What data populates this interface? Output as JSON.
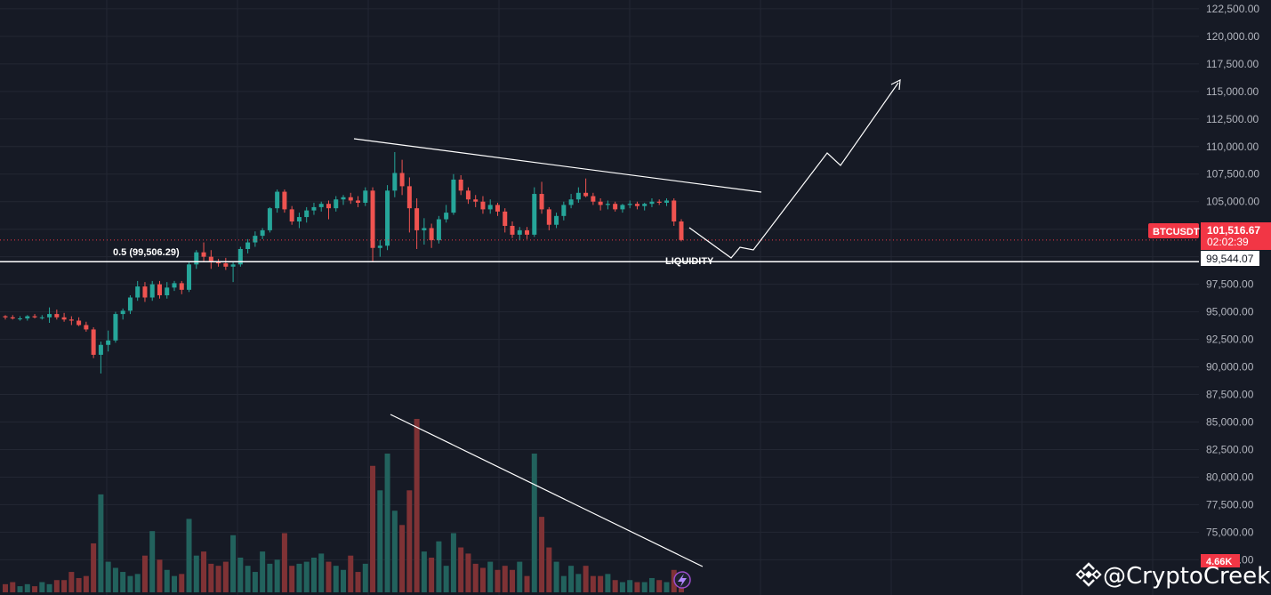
{
  "chart_data": {
    "type": "candlestick",
    "symbol": "BTCUSDT",
    "price_axis": {
      "ticks": [
        "122,500.00",
        "120,000.00",
        "117,500.00",
        "115,000.00",
        "112,500.00",
        "110,000.00",
        "107,500.00",
        "105,000.00",
        "102,500.00",
        "100,000.00",
        "97,500.00",
        "95,000.00",
        "92,500.00",
        "90,000.00",
        "87,500.00",
        "85,000.00",
        "82,500.00",
        "80,000.00",
        "77,500.00",
        "75,000.00",
        "72,500.00"
      ],
      "tick_values": [
        122500,
        120000,
        117500,
        115000,
        112500,
        110000,
        107500,
        105000,
        102500,
        100000,
        97500,
        95000,
        92500,
        90000,
        87500,
        85000,
        82500,
        80000,
        77500,
        75000,
        72500
      ],
      "range": [
        69300,
        123300
      ]
    },
    "current_price": {
      "label": "101,516.67",
      "value": 101516.67,
      "countdown": "02:02:39",
      "color": "#f23645"
    },
    "level_line": {
      "label": "99,544.07",
      "value": 99544.07
    },
    "fib_label": "0.5 (99,506.29)",
    "liquidity_label": "LIQUIDITY",
    "volume_label": "4.66K",
    "watermark": "@CryptoCreekk",
    "candles": [
      [
        94600,
        94700,
        94300,
        94500
      ],
      [
        94500,
        94700,
        94300,
        94400
      ],
      [
        94400,
        94600,
        94200,
        94400
      ],
      [
        94400,
        94700,
        94200,
        94600
      ],
      [
        94600,
        94800,
        94400,
        94500
      ],
      [
        94500,
        94700,
        94300,
        94500
      ],
      [
        94500,
        95400,
        94000,
        94800
      ],
      [
        94800,
        95200,
        94300,
        94500
      ],
      [
        94500,
        94900,
        94100,
        94300
      ],
      [
        94300,
        94600,
        93800,
        94200
      ],
      [
        94200,
        94500,
        93700,
        93800
      ],
      [
        93800,
        94100,
        93200,
        93400
      ],
      [
        93400,
        93600,
        90800,
        91100
      ],
      [
        91100,
        92300,
        89400,
        92000
      ],
      [
        92000,
        93300,
        91400,
        92400
      ],
      [
        92400,
        95000,
        92200,
        94800
      ],
      [
        94800,
        95300,
        94300,
        95100
      ],
      [
        95100,
        96500,
        94800,
        96300
      ],
      [
        96300,
        97800,
        96000,
        97300
      ],
      [
        97300,
        97700,
        95900,
        96300
      ],
      [
        96300,
        97800,
        96000,
        97500
      ],
      [
        97500,
        97800,
        96200,
        96500
      ],
      [
        96500,
        97700,
        96200,
        97200
      ],
      [
        97200,
        97800,
        96900,
        97600
      ],
      [
        97600,
        97800,
        96600,
        97000
      ],
      [
        97000,
        99600,
        96800,
        99300
      ],
      [
        99300,
        100600,
        98900,
        100400
      ],
      [
        100400,
        101300,
        99500,
        100000
      ],
      [
        100000,
        100600,
        98900,
        99600
      ],
      [
        99600,
        99800,
        99100,
        99400
      ],
      [
        99400,
        99900,
        98800,
        99100
      ],
      [
        99100,
        99600,
        97700,
        99300
      ],
      [
        99300,
        100900,
        99100,
        100700
      ],
      [
        100700,
        101600,
        100300,
        101300
      ],
      [
        101300,
        102300,
        100900,
        101900
      ],
      [
        101900,
        102600,
        101600,
        102400
      ],
      [
        102400,
        104500,
        102200,
        104400
      ],
      [
        104400,
        106100,
        104000,
        105900
      ],
      [
        105900,
        106100,
        104000,
        104300
      ],
      [
        104300,
        104600,
        102900,
        103200
      ],
      [
        103200,
        104000,
        102600,
        103600
      ],
      [
        103600,
        104500,
        103100,
        104200
      ],
      [
        104200,
        104900,
        103800,
        104500
      ],
      [
        104500,
        105000,
        104100,
        104800
      ],
      [
        104800,
        105100,
        103400,
        104400
      ],
      [
        104400,
        105500,
        104100,
        105200
      ],
      [
        105200,
        105600,
        104700,
        105400
      ],
      [
        105400,
        105800,
        104800,
        105100
      ],
      [
        105100,
        105500,
        104500,
        104900
      ],
      [
        104900,
        106300,
        104600,
        106000
      ],
      [
        106000,
        106300,
        99600,
        100800
      ],
      [
        100800,
        101500,
        100000,
        101000
      ],
      [
        101000,
        106500,
        100600,
        106000
      ],
      [
        106000,
        109500,
        105400,
        107600
      ],
      [
        107600,
        108800,
        105600,
        106400
      ],
      [
        106400,
        107200,
        102200,
        104400
      ],
      [
        104400,
        105300,
        100700,
        102400
      ],
      [
        102400,
        103500,
        101100,
        102600
      ],
      [
        102600,
        103000,
        100800,
        101500
      ],
      [
        101500,
        103700,
        101200,
        103400
      ],
      [
        103400,
        104700,
        103100,
        104000
      ],
      [
        104000,
        107500,
        103800,
        107000
      ],
      [
        107000,
        107400,
        105600,
        106000
      ],
      [
        106000,
        106300,
        104800,
        105200
      ],
      [
        105200,
        105600,
        104500,
        105000
      ],
      [
        105000,
        105500,
        103900,
        104300
      ],
      [
        104300,
        105200,
        103900,
        104700
      ],
      [
        104700,
        104900,
        103700,
        104100
      ],
      [
        104100,
        104400,
        102200,
        102800
      ],
      [
        102800,
        103200,
        101700,
        102000
      ],
      [
        102000,
        102700,
        101500,
        102400
      ],
      [
        102400,
        102700,
        101600,
        102000
      ],
      [
        102000,
        106300,
        101800,
        105700
      ],
      [
        105700,
        106800,
        103900,
        104300
      ],
      [
        104300,
        104500,
        102400,
        102900
      ],
      [
        102900,
        104000,
        102600,
        103700
      ],
      [
        103700,
        105000,
        103300,
        104700
      ],
      [
        104700,
        105700,
        104400,
        105200
      ],
      [
        105200,
        106300,
        104900,
        105800
      ],
      [
        105800,
        107100,
        105400,
        105500
      ],
      [
        105500,
        105800,
        104700,
        105000
      ],
      [
        105000,
        105300,
        104200,
        104700
      ],
      [
        104700,
        105100,
        104300,
        104800
      ],
      [
        104800,
        105000,
        104100,
        104300
      ],
      [
        104300,
        104800,
        104000,
        104700
      ],
      [
        104700,
        105100,
        104400,
        104800
      ],
      [
        104800,
        105000,
        104300,
        104600
      ],
      [
        104600,
        104900,
        104200,
        104800
      ],
      [
        104800,
        105300,
        104500,
        105000
      ],
      [
        105000,
        105200,
        104700,
        104900
      ],
      [
        104900,
        105300,
        104600,
        105100
      ],
      [
        105100,
        105300,
        102800,
        103200
      ],
      [
        103200,
        103400,
        101400,
        101517
      ]
    ],
    "volumes": [
      4,
      5,
      3,
      4,
      3,
      5,
      4,
      6,
      6,
      10,
      7,
      8,
      24,
      48,
      15,
      12,
      10,
      8,
      9,
      18,
      30,
      16,
      11,
      8,
      9,
      36,
      18,
      20,
      14,
      13,
      15,
      28,
      17,
      13,
      10,
      20,
      14,
      16,
      29,
      13,
      14,
      15,
      17,
      19,
      15,
      13,
      11,
      18,
      10,
      14,
      62,
      50,
      68,
      40,
      33,
      50,
      85,
      20,
      17,
      25,
      13,
      29,
      22,
      19,
      14,
      12,
      15,
      11,
      13,
      11,
      15,
      8,
      68,
      37,
      22,
      15,
      8,
      13,
      9,
      13,
      8,
      8,
      9,
      6,
      5,
      6,
      5,
      5,
      7,
      6,
      5,
      11,
      4
    ]
  }
}
